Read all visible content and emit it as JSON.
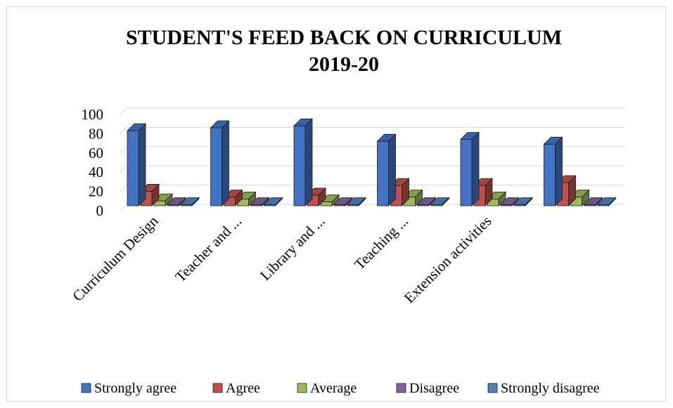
{
  "chart_data": {
    "type": "bar",
    "title": "STUDENT'S FEED BACK ON CURRICULUM",
    "subtitle": "2019-20",
    "categories": [
      "Curriculum Design",
      "Teacher and ...",
      "Library and ...",
      "Teaching ...",
      "Extension activities",
      ""
    ],
    "series": [
      {
        "name": "Strongly agree",
        "color": "#4472C4",
        "values": [
          78,
          81,
          83,
          67,
          69,
          64
        ]
      },
      {
        "name": "Agree",
        "color": "#C0504D",
        "values": [
          15,
          9,
          11,
          21,
          21,
          24
        ]
      },
      {
        "name": "Average",
        "color": "#9BBB59",
        "values": [
          5,
          7,
          4,
          9,
          7,
          9
        ]
      },
      {
        "name": "Disagree",
        "color": "#8064A2",
        "values": [
          1,
          1,
          1,
          1,
          1,
          1
        ]
      },
      {
        "name": "Strongly disagree",
        "color": "#4F81BD",
        "values": [
          0,
          0,
          0,
          0,
          0,
          0
        ]
      }
    ],
    "ylim": [
      0,
      100
    ],
    "yticks": [
      "0",
      "20",
      "40",
      "60",
      "80",
      "100"
    ],
    "grid": true,
    "legend_position": "bottom",
    "style": "3d-clustered-column"
  }
}
